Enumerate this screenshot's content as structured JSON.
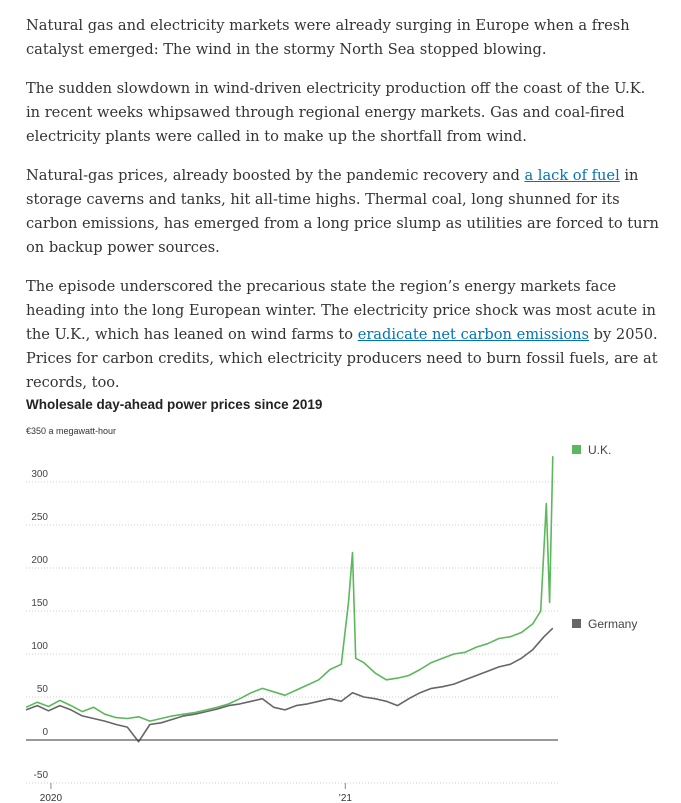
{
  "article": {
    "p1": "Natural gas and electricity markets were already surging in Europe when a fresh catalyst emerged: The wind in the stormy North Sea stopped blowing.",
    "p2": "The sudden slowdown in wind-driven electricity production off the coast of the U.K. in recent weeks whipsawed through regional energy markets. Gas and coal-fired electricity plants were called in to make up the shortfall from wind.",
    "p3_before": "Natural-gas prices, already boosted by the pandemic recovery and ",
    "p3_link": "a lack of fuel",
    "p3_after": " in storage caverns and tanks, hit all-time highs. Thermal coal, long shunned for its carbon emissions, has emerged from a long price slump as utilities are forced to turn on backup power sources.",
    "p4_before": "The episode underscored the precarious state the region’s energy markets face heading into the long European winter. The electricity price shock was most acute in the U.K., which has leaned on wind farms to ",
    "p4_link": "eradicate net carbon emissions",
    "p4_after": " by 2050. Prices for carbon credits, which electricity producers need to burn fossil fuels, are at records, too."
  },
  "chart_data": {
    "type": "line",
    "title": "Wholesale day-ahead power prices since 2019",
    "ylabel": "€350 a megawatt-hour",
    "ylim": [
      -50,
      350
    ],
    "y_ticks": [
      -50,
      0,
      50,
      100,
      150,
      200,
      250,
      300
    ],
    "x_range": [
      "2019-12-01",
      "2021-09-20"
    ],
    "x_ticks": [
      {
        "date": "2020-01-01",
        "label": "2020"
      },
      {
        "date": "2021-01-01",
        "label": "’21"
      }
    ],
    "grid": true,
    "legend": "right, at line ends",
    "series": [
      {
        "name": "U.K.",
        "color": "#5cb85c",
        "points": [
          [
            "2019-12-01",
            38
          ],
          [
            "2019-12-15",
            44
          ],
          [
            "2019-12-29",
            39
          ],
          [
            "2020-01-12",
            46
          ],
          [
            "2020-01-26",
            40
          ],
          [
            "2020-02-09",
            33
          ],
          [
            "2020-02-23",
            38
          ],
          [
            "2020-03-08",
            30
          ],
          [
            "2020-03-22",
            26
          ],
          [
            "2020-04-05",
            25
          ],
          [
            "2020-04-19",
            27
          ],
          [
            "2020-05-03",
            22
          ],
          [
            "2020-05-17",
            25
          ],
          [
            "2020-05-31",
            28
          ],
          [
            "2020-06-14",
            30
          ],
          [
            "2020-06-28",
            32
          ],
          [
            "2020-07-12",
            35
          ],
          [
            "2020-07-26",
            38
          ],
          [
            "2020-08-09",
            42
          ],
          [
            "2020-08-23",
            48
          ],
          [
            "2020-09-06",
            55
          ],
          [
            "2020-09-20",
            60
          ],
          [
            "2020-10-04",
            56
          ],
          [
            "2020-10-18",
            52
          ],
          [
            "2020-11-01",
            58
          ],
          [
            "2020-11-15",
            64
          ],
          [
            "2020-11-29",
            70
          ],
          [
            "2020-12-13",
            82
          ],
          [
            "2020-12-27",
            88
          ],
          [
            "2021-01-05",
            160
          ],
          [
            "2021-01-10",
            218
          ],
          [
            "2021-01-14",
            95
          ],
          [
            "2021-01-24",
            90
          ],
          [
            "2021-02-07",
            78
          ],
          [
            "2021-02-21",
            70
          ],
          [
            "2021-03-07",
            72
          ],
          [
            "2021-03-21",
            75
          ],
          [
            "2021-04-04",
            82
          ],
          [
            "2021-04-18",
            90
          ],
          [
            "2021-05-02",
            95
          ],
          [
            "2021-05-16",
            100
          ],
          [
            "2021-05-30",
            102
          ],
          [
            "2021-06-13",
            108
          ],
          [
            "2021-06-27",
            112
          ],
          [
            "2021-07-11",
            118
          ],
          [
            "2021-07-25",
            120
          ],
          [
            "2021-08-08",
            125
          ],
          [
            "2021-08-22",
            135
          ],
          [
            "2021-09-01",
            150
          ],
          [
            "2021-09-08",
            275
          ],
          [
            "2021-09-12",
            160
          ],
          [
            "2021-09-16",
            330
          ]
        ]
      },
      {
        "name": "Germany",
        "color": "#666666",
        "points": [
          [
            "2019-12-01",
            35
          ],
          [
            "2019-12-15",
            40
          ],
          [
            "2019-12-29",
            34
          ],
          [
            "2020-01-12",
            40
          ],
          [
            "2020-01-26",
            35
          ],
          [
            "2020-02-09",
            28
          ],
          [
            "2020-02-23",
            25
          ],
          [
            "2020-03-08",
            22
          ],
          [
            "2020-03-22",
            18
          ],
          [
            "2020-04-05",
            15
          ],
          [
            "2020-04-19",
            -2
          ],
          [
            "2020-05-03",
            18
          ],
          [
            "2020-05-17",
            20
          ],
          [
            "2020-05-31",
            24
          ],
          [
            "2020-06-14",
            28
          ],
          [
            "2020-06-28",
            30
          ],
          [
            "2020-07-12",
            33
          ],
          [
            "2020-07-26",
            36
          ],
          [
            "2020-08-09",
            40
          ],
          [
            "2020-08-23",
            42
          ],
          [
            "2020-09-06",
            45
          ],
          [
            "2020-09-20",
            48
          ],
          [
            "2020-10-04",
            38
          ],
          [
            "2020-10-18",
            35
          ],
          [
            "2020-11-01",
            40
          ],
          [
            "2020-11-15",
            42
          ],
          [
            "2020-11-29",
            45
          ],
          [
            "2020-12-13",
            48
          ],
          [
            "2020-12-27",
            45
          ],
          [
            "2021-01-10",
            55
          ],
          [
            "2021-01-24",
            50
          ],
          [
            "2021-02-07",
            48
          ],
          [
            "2021-02-21",
            45
          ],
          [
            "2021-03-07",
            40
          ],
          [
            "2021-03-21",
            48
          ],
          [
            "2021-04-04",
            55
          ],
          [
            "2021-04-18",
            60
          ],
          [
            "2021-05-02",
            62
          ],
          [
            "2021-05-16",
            65
          ],
          [
            "2021-05-30",
            70
          ],
          [
            "2021-06-13",
            75
          ],
          [
            "2021-06-27",
            80
          ],
          [
            "2021-07-11",
            85
          ],
          [
            "2021-07-25",
            88
          ],
          [
            "2021-08-08",
            95
          ],
          [
            "2021-08-22",
            105
          ],
          [
            "2021-09-05",
            120
          ],
          [
            "2021-09-16",
            130
          ]
        ]
      }
    ]
  }
}
